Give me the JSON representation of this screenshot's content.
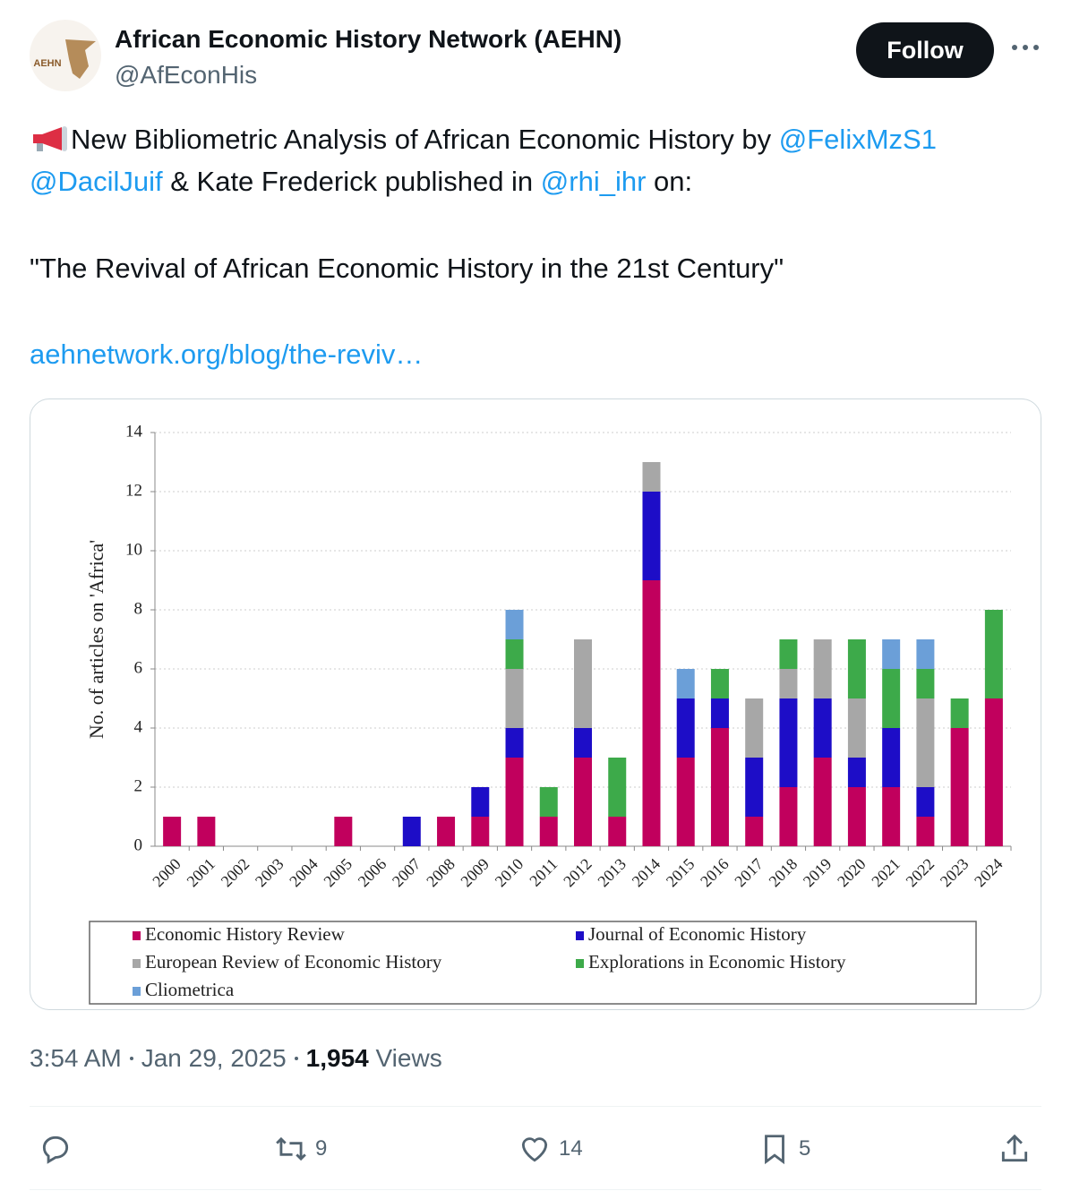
{
  "author": {
    "name": "African Economic History Network (AEHN)",
    "handle": "@AfEconHis",
    "logo_text": "AEHN"
  },
  "follow_button": "Follow",
  "tweet": {
    "line1": {
      "text": "New Bibliometric Analysis of African Economic History by ",
      "mention": "@FelixMzS1"
    },
    "line2": {
      "mention1": "@DacilJuif",
      "text1": " & Kate Frederick published in ",
      "mention2": "@rhi_ihr",
      "text2": " on:"
    },
    "quote": "\"The Revival of African Economic History in the 21st Century\"",
    "link": "aehnetwork.org/blog/the-reviv…"
  },
  "chart_data": {
    "type": "bar",
    "stacked": true,
    "y_label": "No. of articles on 'Africa'",
    "categories": [
      "2000",
      "2001",
      "2002",
      "2003",
      "2004",
      "2005",
      "2006",
      "2007",
      "2008",
      "2009",
      "2010",
      "2011",
      "2012",
      "2013",
      "2014",
      "2015",
      "2016",
      "2017",
      "2018",
      "2019",
      "2020",
      "2021",
      "2022",
      "2023",
      "2024"
    ],
    "series": [
      {
        "name": "Economic History Review",
        "color": "#c1005d",
        "values": [
          1,
          1,
          0,
          0,
          0,
          1,
          0,
          0,
          1,
          1,
          3,
          1,
          3,
          1,
          9,
          3,
          4,
          1,
          2,
          3,
          2,
          2,
          1,
          4,
          5
        ]
      },
      {
        "name": "Journal of Economic History",
        "color": "#1d0dc7",
        "values": [
          0,
          0,
          0,
          0,
          0,
          0,
          0,
          1,
          0,
          1,
          1,
          0,
          1,
          0,
          3,
          2,
          1,
          2,
          3,
          2,
          1,
          2,
          1,
          0,
          0
        ]
      },
      {
        "name": "European Review of Economic History",
        "color": "#a7a7a7",
        "values": [
          0,
          0,
          0,
          0,
          0,
          0,
          0,
          0,
          0,
          0,
          2,
          0,
          3,
          0,
          1,
          0,
          0,
          2,
          1,
          2,
          2,
          0,
          3,
          0,
          0
        ]
      },
      {
        "name": "Explorations in Economic History",
        "color": "#3daa4a",
        "values": [
          0,
          0,
          0,
          0,
          0,
          0,
          0,
          0,
          0,
          0,
          1,
          1,
          0,
          2,
          0,
          0,
          1,
          0,
          1,
          0,
          2,
          2,
          1,
          1,
          3
        ]
      },
      {
        "name": "Cliometrica",
        "color": "#6b9fd8",
        "values": [
          0,
          0,
          0,
          0,
          0,
          0,
          0,
          0,
          0,
          0,
          1,
          0,
          0,
          0,
          0,
          1,
          0,
          0,
          0,
          0,
          0,
          1,
          1,
          0,
          0
        ]
      }
    ],
    "ylim": [
      0,
      14
    ],
    "yticks": [
      0,
      2,
      4,
      6,
      8,
      10,
      12,
      14
    ],
    "grid": true
  },
  "meta": {
    "time": "3:54 AM",
    "date": "Jan 29, 2025",
    "views_count": "1,954",
    "views_label": "Views"
  },
  "actions": {
    "reposts": 9,
    "likes": 14,
    "bookmarks": 5
  }
}
